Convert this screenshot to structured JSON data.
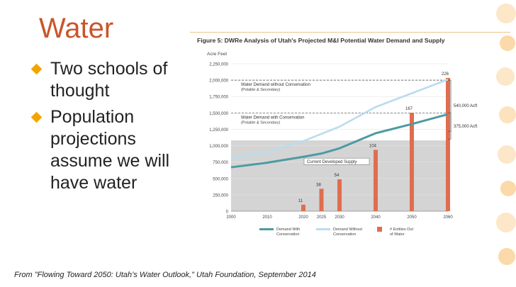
{
  "slide": {
    "title": "Water",
    "bullets": [
      {
        "text": "Two schools of thought"
      },
      {
        "text": "Population projections assume we will have water"
      }
    ],
    "source": "From \"Flowing Toward 2050: Utah’s Water Outlook,\" Utah Foundation, September 2014"
  },
  "chart_data": {
    "type": "line",
    "title": "Figure 5: DWRe Analysis of Utah's Projected M&I Potential Water Demand and Supply",
    "ylabel": "Acre Feet",
    "xlabel": "",
    "x": [
      2000,
      2010,
      2020,
      2025,
      2030,
      2040,
      2050,
      2060
    ],
    "ylim": [
      0,
      2250000
    ],
    "yticks": [
      0,
      250000,
      500000,
      750000,
      1000000,
      1250000,
      1500000,
      1750000,
      2000000,
      2250000
    ],
    "ytick_labels": [
      "0",
      "250,000",
      "500,000",
      "750,000",
      "1,000,000",
      "1,250,000",
      "1,500,000",
      "1,750,000",
      "2,000,000",
      "2,250,000"
    ],
    "xtick_labels": [
      "2000",
      "2010",
      "2020",
      "2025",
      "2030",
      "2040",
      "2050",
      "2060"
    ],
    "series": [
      {
        "name": "Demand With Conservation",
        "color": "#4e9aa4",
        "x": [
          2000,
          2010,
          2020,
          2025,
          2030,
          2040,
          2050,
          2060
        ],
        "values": [
          670000,
          740000,
          830000,
          880000,
          960000,
          1190000,
          1330000,
          1480000
        ]
      },
      {
        "name": "Demand Without Conservation",
        "color": "#b9dcee",
        "x": [
          2000,
          2010,
          2020,
          2025,
          2030,
          2040,
          2050,
          2060
        ],
        "values": [
          800000,
          900000,
          1070000,
          1180000,
          1290000,
          1590000,
          1800000,
          2010000
        ]
      }
    ],
    "supply": {
      "name": "Current Developed Supply",
      "value": 1080000,
      "color": "#d4d4d4"
    },
    "bars": {
      "name": "# Entities Out of Water",
      "color": "#e06e4e",
      "x": [
        2020,
        2025,
        2030,
        2040,
        2050,
        2060
      ],
      "values": [
        11,
        38,
        54,
        104,
        167,
        226
      ]
    },
    "reference_lines": [
      {
        "value": 2000000,
        "label": "Water Demand without Conservation",
        "sublabel": "(Potable & Secondary)"
      },
      {
        "value": 1500000,
        "label": "Water Demand with Conservation",
        "sublabel": "(Potable & Secondary)"
      }
    ],
    "annotations": {
      "gap_without": "540,000 Acft",
      "gap_with": "375,000 Acft",
      "supply_label": "Current Developed Supply"
    }
  }
}
